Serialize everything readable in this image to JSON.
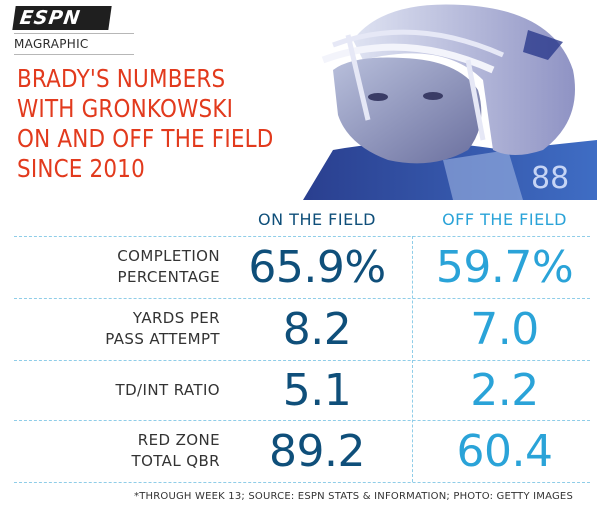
{
  "header": {
    "logo": "ESPN",
    "kicker": "MAGRAPHIC",
    "title_lines": [
      "BRADY'S NUMBERS",
      "WITH GRONKOWSKI",
      "ON AND OFF THE FIELD",
      "SINCE 2010"
    ]
  },
  "table": {
    "columns": [
      "ON THE FIELD",
      "OFF THE FIELD"
    ],
    "rows": [
      {
        "label_lines": [
          "COMPLETION",
          "PERCENTAGE"
        ],
        "on": "65.9%",
        "off": "59.7%"
      },
      {
        "label_lines": [
          "YARDS PER",
          "PASS ATTEMPT"
        ],
        "on": "8.2",
        "off": "7.0"
      },
      {
        "label_lines": [
          "TD/INT RATIO"
        ],
        "on": "5.1",
        "off": "2.2"
      },
      {
        "label_lines": [
          "RED ZONE",
          "TOTAL QBR"
        ],
        "on": "89.2",
        "off": "60.4"
      }
    ]
  },
  "footnote": "*THROUGH WEEK 13; SOURCE: ESPN STATS & INFORMATION; PHOTO: GETTY IMAGES",
  "colors": {
    "title": "#e23a1d",
    "on_field": "#0f4f7a",
    "off_field": "#2aa3d8",
    "divider": "#8fcde8"
  },
  "photo": {
    "number_on_jersey": "88"
  }
}
